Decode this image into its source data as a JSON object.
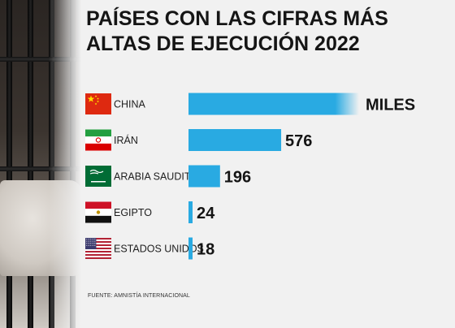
{
  "title": "PAÍSES CON LAS CIFRAS MÁS ALTAS DE EJECUCIÓN 2022",
  "source": "FUENTE: AMNISTÍA INTERNACIONAL",
  "colors": {
    "bar": "#29aae2",
    "text": "#151515",
    "background": "#f1f1f1"
  },
  "chart_data": {
    "type": "bar",
    "orientation": "horizontal",
    "title": "PAÍSES CON LAS CIFRAS MÁS ALTAS DE EJECUCIÓN 2022",
    "categories": [
      "CHINA",
      "IRÁN",
      "ARABIA SAUDITA",
      "EGIPTO",
      "ESTADOS UNIDOS"
    ],
    "values": [
      null,
      576,
      196,
      24,
      18
    ],
    "value_labels": [
      "MILES",
      "576",
      "196",
      "24",
      "18"
    ],
    "flags": [
      "china-flag",
      "iran-flag",
      "saudi-arabia-flag",
      "egypt-flag",
      "usa-flag"
    ],
    "xlabel": "",
    "ylabel": "",
    "grid": false,
    "legend": "none"
  }
}
